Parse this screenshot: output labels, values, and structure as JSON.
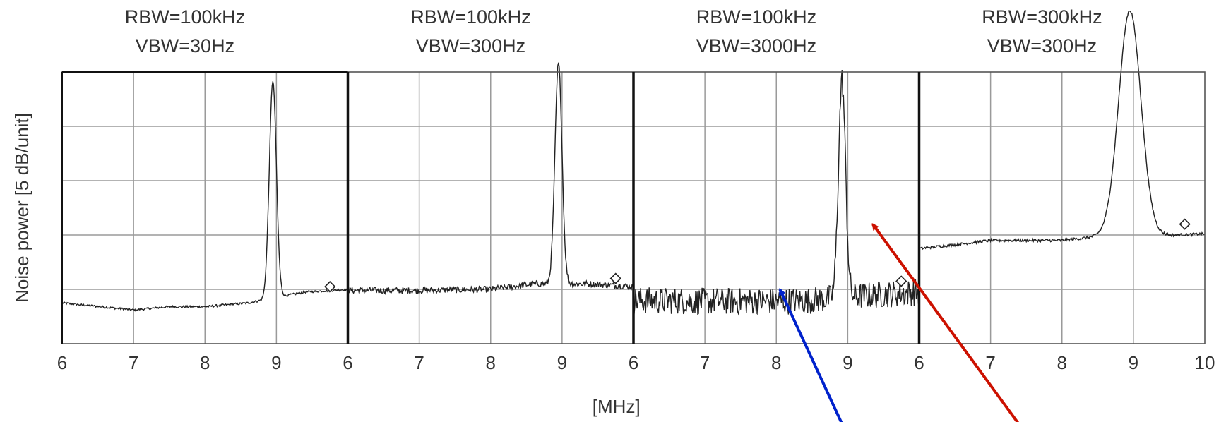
{
  "chart_data": {
    "type": "line",
    "ylabel": "Noise power  [5 dB/unit]",
    "xlabel": "[MHz]",
    "grid": true,
    "ylim": [
      0,
      5
    ],
    "panels": [
      {
        "rbw": "RBW=100kHz",
        "vbw": "VBW=30Hz",
        "xlim": [
          6,
          10
        ],
        "tick_labels": [
          "6",
          "7",
          "8",
          "9"
        ],
        "baseline": [
          [
            6.0,
            0.75
          ],
          [
            7.0,
            0.62
          ],
          [
            7.5,
            0.68
          ],
          [
            8.0,
            0.68
          ],
          [
            8.6,
            0.75
          ],
          [
            9.4,
            0.95
          ],
          [
            10.0,
            1.0
          ]
        ],
        "peak": {
          "x": 8.95,
          "height": 4.0,
          "width": 0.07
        },
        "noise": 0.02,
        "marker": {
          "x": 9.75,
          "y": 1.05
        }
      },
      {
        "rbw": "RBW=100kHz",
        "vbw": "VBW=300Hz",
        "xlim": [
          6,
          10
        ],
        "tick_labels": [
          "6",
          "7",
          "8",
          "9"
        ],
        "baseline": [
          [
            6.0,
            0.98
          ],
          [
            7.0,
            0.98
          ],
          [
            8.0,
            1.0
          ],
          [
            8.6,
            1.1
          ],
          [
            9.4,
            1.1
          ],
          [
            10.0,
            1.05
          ]
        ],
        "peak": {
          "x": 8.95,
          "height": 4.05,
          "width": 0.07
        },
        "noise": 0.06,
        "marker": {
          "x": 9.75,
          "y": 1.2
        }
      },
      {
        "rbw": "RBW=100kHz",
        "vbw": "VBW=3000Hz",
        "xlim": [
          6,
          10
        ],
        "tick_labels": [
          "6",
          "7",
          "8",
          "9"
        ],
        "baseline": [
          [
            6.0,
            0.8
          ],
          [
            7.0,
            0.78
          ],
          [
            8.0,
            0.78
          ],
          [
            8.5,
            0.8
          ],
          [
            9.4,
            0.9
          ],
          [
            10.0,
            0.95
          ]
        ],
        "peak": {
          "x": 8.92,
          "height": 4.0,
          "width": 0.07
        },
        "noise": 0.25,
        "marker": {
          "x": 9.75,
          "y": 1.15
        }
      },
      {
        "rbw": "RBW=300kHz",
        "vbw": "VBW=300Hz",
        "xlim": [
          6,
          10
        ],
        "tick_labels": [
          "6",
          "7",
          "8",
          "9",
          "10"
        ],
        "baseline": [
          [
            6.0,
            1.75
          ],
          [
            6.5,
            1.82
          ],
          [
            7.0,
            1.9
          ],
          [
            8.0,
            1.9
          ],
          [
            8.5,
            1.97
          ],
          [
            9.6,
            2.0
          ],
          [
            10.0,
            2.02
          ]
        ],
        "peak": {
          "x": 8.95,
          "height": 4.15,
          "width": 0.22
        },
        "noise": 0.025,
        "marker": {
          "x": 9.72,
          "y": 2.2
        }
      }
    ],
    "annotation_arrows": [
      {
        "color": "#0022cc",
        "from_panel": 2,
        "target_x": 8.05,
        "target_y": 1.0
      },
      {
        "color": "#cc1100",
        "from_panel": 2,
        "target_x": 9.35,
        "target_y": 2.2
      }
    ]
  }
}
